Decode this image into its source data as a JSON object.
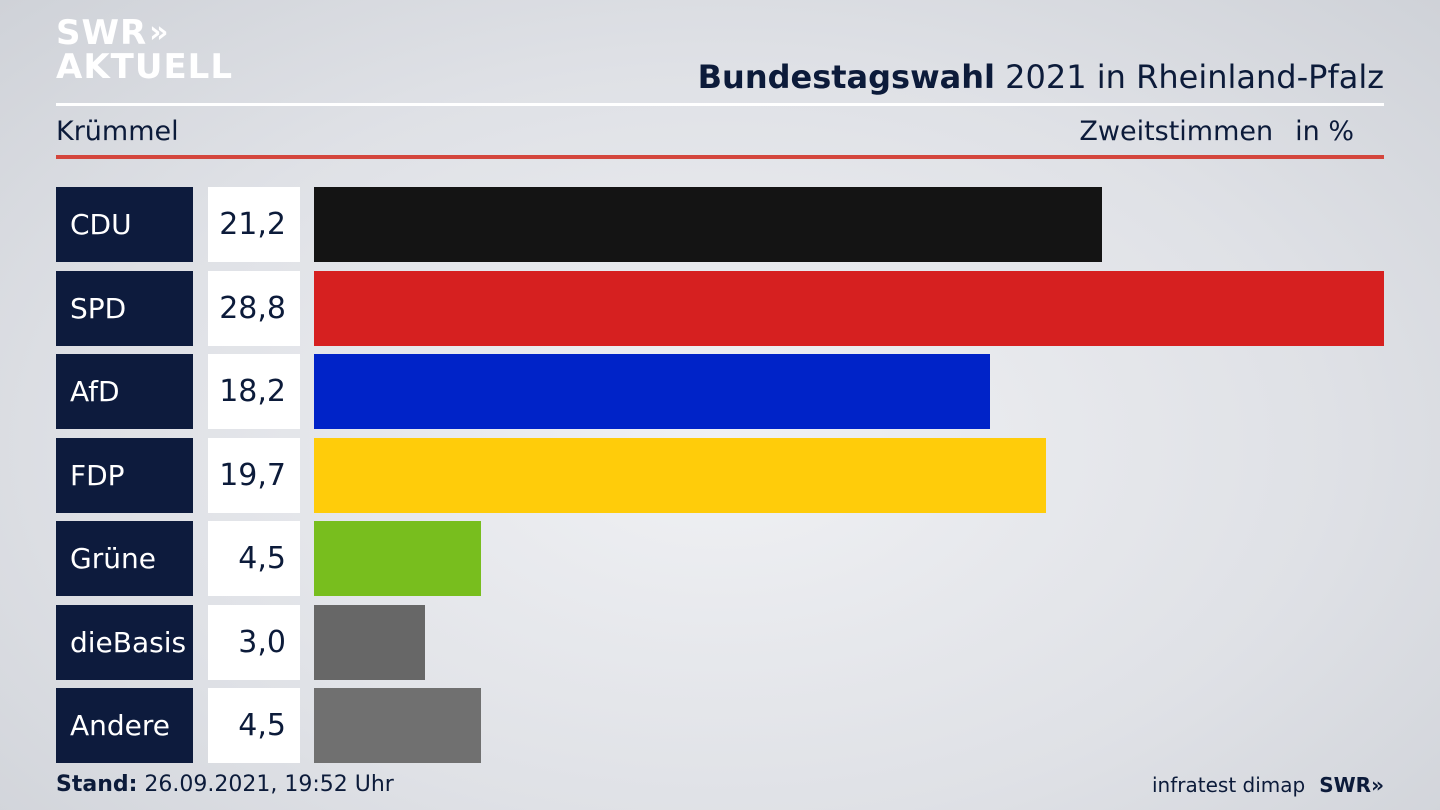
{
  "brand": {
    "logo_line1": "SWR",
    "logo_chevrons": "»",
    "logo_line2": "AKTUELL"
  },
  "header": {
    "title_bold": "Bundestagswahl",
    "title_rest": "2021 in Rheinland-Pfalz",
    "location": "Krümmel",
    "metric": "Zweitstimmen",
    "unit": "in %"
  },
  "footer": {
    "stand_label": "Stand:",
    "stand_value": "26.09.2021, 19:52 Uhr",
    "source": "infratest dimap",
    "source_logo": "SWR»"
  },
  "chart_data": {
    "type": "bar",
    "orientation": "horizontal",
    "categories": [
      "CDU",
      "SPD",
      "AfD",
      "FDP",
      "Grüne",
      "dieBasis",
      "Andere"
    ],
    "values": [
      21.2,
      28.8,
      18.2,
      19.7,
      4.5,
      3.0,
      4.5
    ],
    "value_labels": [
      "21,2",
      "28,8",
      "18,2",
      "19,7",
      "4,5",
      "3,0",
      "4,5"
    ],
    "colors": [
      "#141414",
      "#d62020",
      "#0023c8",
      "#ffcc0a",
      "#78be1e",
      "#676767",
      "#707070"
    ],
    "xlim": [
      0,
      28.8
    ],
    "grid": false,
    "legend": "none"
  }
}
